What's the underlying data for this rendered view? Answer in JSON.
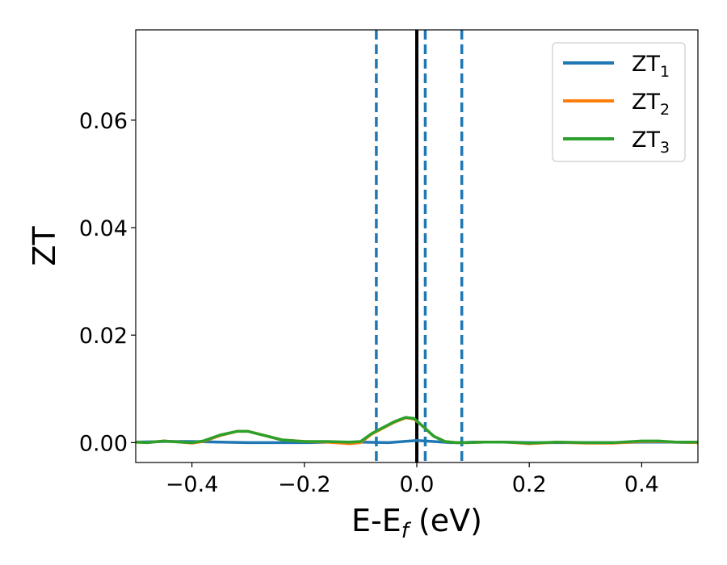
{
  "chart_data": {
    "type": "line",
    "title": "",
    "xlabel": {
      "main": "E-E",
      "sub": "f",
      "unit": " (eV)"
    },
    "ylabel": "ZT",
    "xlim": [
      -0.5,
      0.5
    ],
    "ylim": [
      -0.0037,
      0.0768
    ],
    "xticks": [
      -0.4,
      -0.2,
      0.0,
      0.2,
      0.4
    ],
    "xtick_labels": [
      "−0.4",
      "−0.2",
      "0.0",
      "0.2",
      "0.4"
    ],
    "yticks": [
      0.0,
      0.02,
      0.04,
      0.06
    ],
    "ytick_labels": [
      "0.00",
      "0.02",
      "0.04",
      "0.06"
    ],
    "grid": false,
    "legend_position": "top-right",
    "vlines": [
      {
        "x": 0.0,
        "style": "solid",
        "color": "#000000"
      },
      {
        "x": -0.072,
        "style": "dashed",
        "color": "#1f77b4"
      },
      {
        "x": 0.015,
        "style": "dashed",
        "color": "#1f77b4"
      },
      {
        "x": 0.08,
        "style": "dashed",
        "color": "#1f77b4"
      }
    ],
    "series": [
      {
        "name": "ZT",
        "sub": "1",
        "color": "#1f77b4",
        "x": [
          -0.5,
          -0.45,
          -0.4,
          -0.35,
          -0.3,
          -0.25,
          -0.2,
          -0.15,
          -0.1,
          -0.05,
          0.0,
          0.03,
          0.06,
          0.08,
          0.1,
          0.15,
          0.2,
          0.25,
          0.3,
          0.35,
          0.4,
          0.45,
          0.5
        ],
        "y": [
          0.0001,
          0.0002,
          0.0002,
          0.0001,
          0.0,
          0.0,
          0.0,
          0.0001,
          0.0001,
          0.0,
          0.0004,
          0.0002,
          0.0,
          0.0,
          0.0001,
          0.0001,
          0.0,
          0.0,
          0.0,
          0.0,
          0.0001,
          0.0001,
          0.0
        ]
      },
      {
        "name": "ZT",
        "sub": "2",
        "color": "#ff7f0e",
        "x": [
          -0.5,
          -0.48,
          -0.45,
          -0.42,
          -0.4,
          -0.38,
          -0.35,
          -0.32,
          -0.3,
          -0.27,
          -0.24,
          -0.2,
          -0.16,
          -0.12,
          -0.1,
          -0.08,
          -0.06,
          -0.04,
          -0.02,
          -0.005,
          0.01,
          0.03,
          0.05,
          0.07,
          0.09,
          0.12,
          0.16,
          0.2,
          0.25,
          0.3,
          0.35,
          0.4,
          0.43,
          0.46,
          0.5
        ],
        "y": [
          0.0001,
          0.0,
          0.0003,
          0.0001,
          -0.0001,
          0.0002,
          0.0013,
          0.0021,
          0.0021,
          0.0013,
          0.0005,
          0.0002,
          0.0001,
          -0.0002,
          0.0,
          0.0016,
          0.0027,
          0.0038,
          0.0046,
          0.0044,
          0.0031,
          0.0012,
          0.0002,
          0.0,
          0.0,
          0.0001,
          0.0001,
          -0.0002,
          0.0001,
          -0.0001,
          -0.0001,
          0.0002,
          0.0002,
          0.0001,
          0.0
        ]
      },
      {
        "name": "ZT",
        "sub": "3",
        "color": "#2ca02c",
        "x": [
          -0.5,
          -0.48,
          -0.45,
          -0.42,
          -0.4,
          -0.38,
          -0.35,
          -0.32,
          -0.3,
          -0.27,
          -0.24,
          -0.2,
          -0.16,
          -0.12,
          -0.1,
          -0.08,
          -0.06,
          -0.04,
          -0.02,
          -0.005,
          0.01,
          0.03,
          0.05,
          0.07,
          0.09,
          0.12,
          0.16,
          0.2,
          0.25,
          0.3,
          0.35,
          0.4,
          0.43,
          0.46,
          0.5
        ],
        "y": [
          0.0001,
          0.0,
          0.0003,
          0.0001,
          0.0,
          0.0003,
          0.0014,
          0.0021,
          0.0021,
          0.0013,
          0.0005,
          0.0002,
          0.0002,
          0.0001,
          0.0002,
          0.0017,
          0.0028,
          0.0039,
          0.0047,
          0.0045,
          0.0031,
          0.0012,
          0.0002,
          0.0,
          0.0,
          0.0001,
          0.0001,
          -0.0001,
          0.0001,
          0.0,
          0.0,
          0.0003,
          0.0003,
          0.0001,
          0.0001
        ]
      }
    ]
  }
}
